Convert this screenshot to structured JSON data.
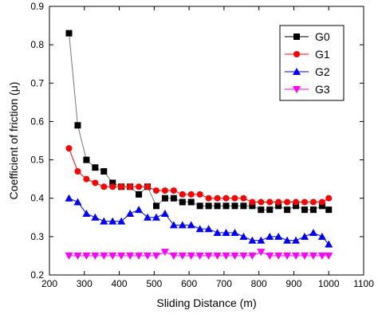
{
  "chart_data": {
    "type": "line",
    "title": "",
    "xlabel": "Sliding Distance (m)",
    "ylabel": "Coefficient of friction (μ)",
    "xlim": [
      200,
      1100
    ],
    "ylim": [
      0.2,
      0.9
    ],
    "xticks": [
      200,
      300,
      400,
      500,
      600,
      700,
      800,
      900,
      1000,
      1100
    ],
    "yticks": [
      0.2,
      0.3,
      0.4,
      0.5,
      0.6,
      0.7,
      0.8,
      0.9
    ],
    "xtick_labels": [
      "200",
      "300",
      "400",
      "500",
      "600",
      "700",
      "800",
      "900",
      "1000",
      "1100"
    ],
    "ytick_labels": [
      "0.2",
      "0.3",
      "0.4",
      "0.5",
      "0.6",
      "0.7",
      "0.8",
      "0.9"
    ],
    "grid": false,
    "legend_position": "top-right",
    "series": [
      {
        "name": "G0",
        "color": "#000000",
        "marker": "square",
        "x": [
          256,
          281,
          306,
          331,
          356,
          381,
          406,
          431,
          456,
          481,
          506,
          531,
          556,
          581,
          606,
          631,
          656,
          681,
          706,
          731,
          756,
          781,
          806,
          831,
          856,
          881,
          906,
          931,
          956,
          981,
          1000
        ],
        "y": [
          0.83,
          0.59,
          0.5,
          0.48,
          0.47,
          0.44,
          0.43,
          0.43,
          0.41,
          0.43,
          0.38,
          0.4,
          0.4,
          0.39,
          0.39,
          0.38,
          0.38,
          0.38,
          0.38,
          0.38,
          0.38,
          0.38,
          0.37,
          0.37,
          0.38,
          0.37,
          0.38,
          0.37,
          0.37,
          0.38,
          0.37
        ]
      },
      {
        "name": "G1",
        "color": "#ff0000",
        "marker": "circle",
        "x": [
          256,
          281,
          306,
          331,
          356,
          381,
          406,
          431,
          456,
          481,
          506,
          531,
          556,
          581,
          606,
          631,
          656,
          681,
          706,
          731,
          756,
          781,
          806,
          831,
          856,
          881,
          906,
          931,
          956,
          981,
          1000
        ],
        "y": [
          0.53,
          0.47,
          0.45,
          0.44,
          0.43,
          0.43,
          0.43,
          0.43,
          0.43,
          0.43,
          0.42,
          0.42,
          0.42,
          0.41,
          0.41,
          0.41,
          0.4,
          0.4,
          0.4,
          0.4,
          0.4,
          0.39,
          0.39,
          0.39,
          0.39,
          0.39,
          0.39,
          0.39,
          0.39,
          0.39,
          0.4
        ]
      },
      {
        "name": "G2",
        "color": "#0000ff",
        "marker": "triangle-up",
        "x": [
          256,
          281,
          306,
          331,
          356,
          381,
          406,
          431,
          456,
          481,
          506,
          531,
          556,
          581,
          606,
          631,
          656,
          681,
          706,
          731,
          756,
          781,
          806,
          831,
          856,
          881,
          906,
          931,
          956,
          981,
          1000
        ],
        "y": [
          0.4,
          0.39,
          0.36,
          0.35,
          0.34,
          0.34,
          0.34,
          0.36,
          0.37,
          0.35,
          0.35,
          0.36,
          0.33,
          0.33,
          0.33,
          0.32,
          0.32,
          0.31,
          0.31,
          0.31,
          0.3,
          0.29,
          0.29,
          0.3,
          0.3,
          0.29,
          0.29,
          0.3,
          0.31,
          0.3,
          0.28
        ]
      },
      {
        "name": "G3",
        "color": "#ff00ff",
        "marker": "triangle-down",
        "x": [
          256,
          281,
          306,
          331,
          356,
          381,
          406,
          431,
          456,
          481,
          506,
          531,
          556,
          581,
          606,
          631,
          656,
          681,
          706,
          731,
          756,
          781,
          806,
          831,
          856,
          881,
          906,
          931,
          956,
          981,
          1000
        ],
        "y": [
          0.25,
          0.25,
          0.25,
          0.25,
          0.25,
          0.25,
          0.25,
          0.25,
          0.25,
          0.25,
          0.25,
          0.26,
          0.25,
          0.25,
          0.25,
          0.25,
          0.25,
          0.25,
          0.25,
          0.25,
          0.25,
          0.25,
          0.26,
          0.25,
          0.25,
          0.25,
          0.25,
          0.25,
          0.25,
          0.25,
          0.25
        ]
      }
    ]
  }
}
